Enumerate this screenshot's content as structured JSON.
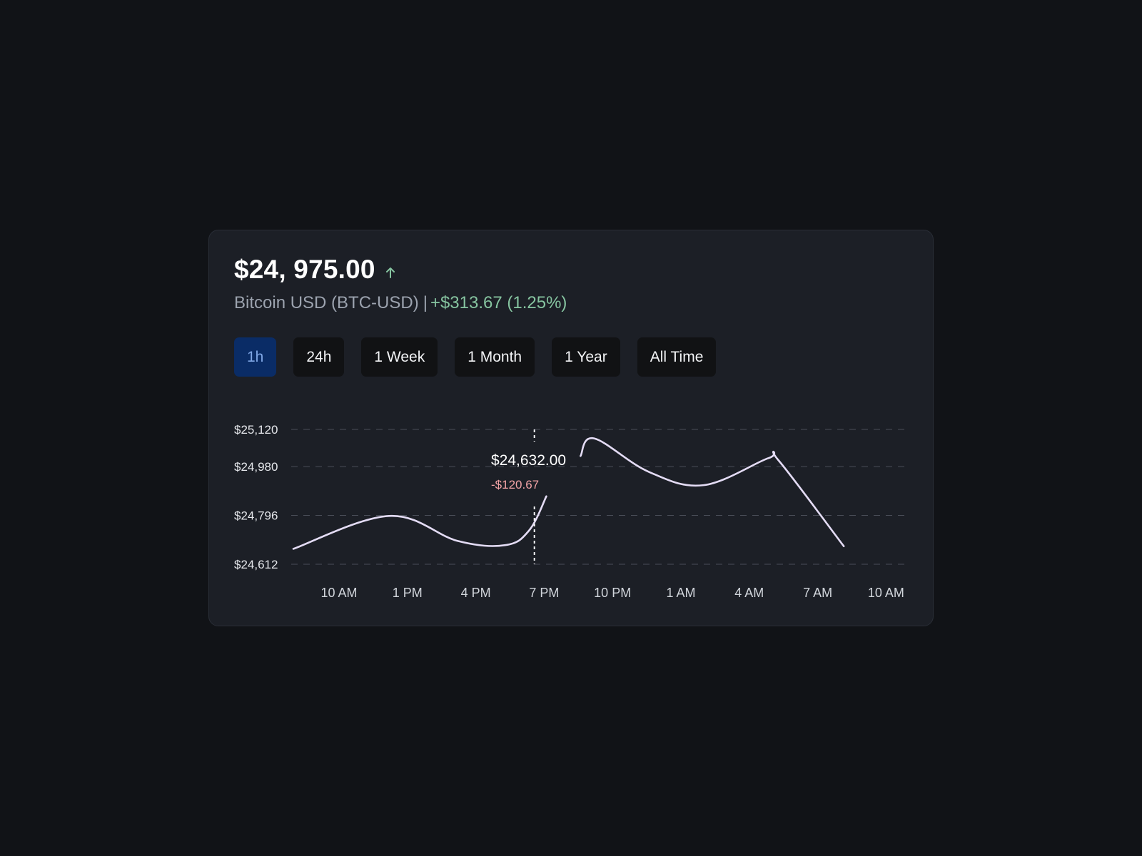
{
  "header": {
    "price": "$24, 975.00",
    "trend_icon": "arrow-up-icon",
    "asset_name": "Bitcoin USD (BTC-USD)",
    "separator": "|",
    "change": "+$313.67 (1.25%)"
  },
  "colors": {
    "background": "#111317",
    "card": "#1c1f26",
    "positive": "#86c4a0",
    "negative": "#f2a3a6",
    "line": "#e4dcf5",
    "active_button": "#0a2c66"
  },
  "ranges": [
    {
      "label": "1h",
      "active": true
    },
    {
      "label": "24h",
      "active": false
    },
    {
      "label": "1 Week",
      "active": false
    },
    {
      "label": "1 Month",
      "active": false
    },
    {
      "label": "1 Year",
      "active": false
    },
    {
      "label": "All Time",
      "active": false
    }
  ],
  "tooltip": {
    "price": "$24,632.00",
    "change": "-$120.67"
  },
  "chart_data": {
    "type": "line",
    "y_ticks": [
      "$25,120",
      "$24,980",
      "$24,796",
      "$24,612"
    ],
    "y_tick_values": [
      25120,
      24980,
      24796,
      24612
    ],
    "x_ticks": [
      "10 AM",
      "1 PM",
      "4 PM",
      "7 PM",
      "10 PM",
      "1 AM",
      "4 AM",
      "7 AM",
      "10 AM"
    ],
    "ylim": [
      24612,
      25120
    ],
    "grid": true,
    "series": [
      {
        "segments": [
          [
            [
              0,
              24670
            ],
            [
              1.4,
              24794
            ],
            [
              2.4,
              24700
            ],
            [
              3.1,
              24684
            ],
            [
              3.45,
              24740
            ],
            [
              3.7,
              24868
            ]
          ],
          [
            [
              4.2,
              25020
            ],
            [
              4.4,
              25086
            ],
            [
              5.2,
              24960
            ],
            [
              6,
              24910
            ],
            [
              6.95,
              25012
            ],
            [
              7.1,
              25002
            ],
            [
              8.05,
              24680
            ]
          ]
        ]
      }
    ],
    "hover_x": 3.4
  }
}
